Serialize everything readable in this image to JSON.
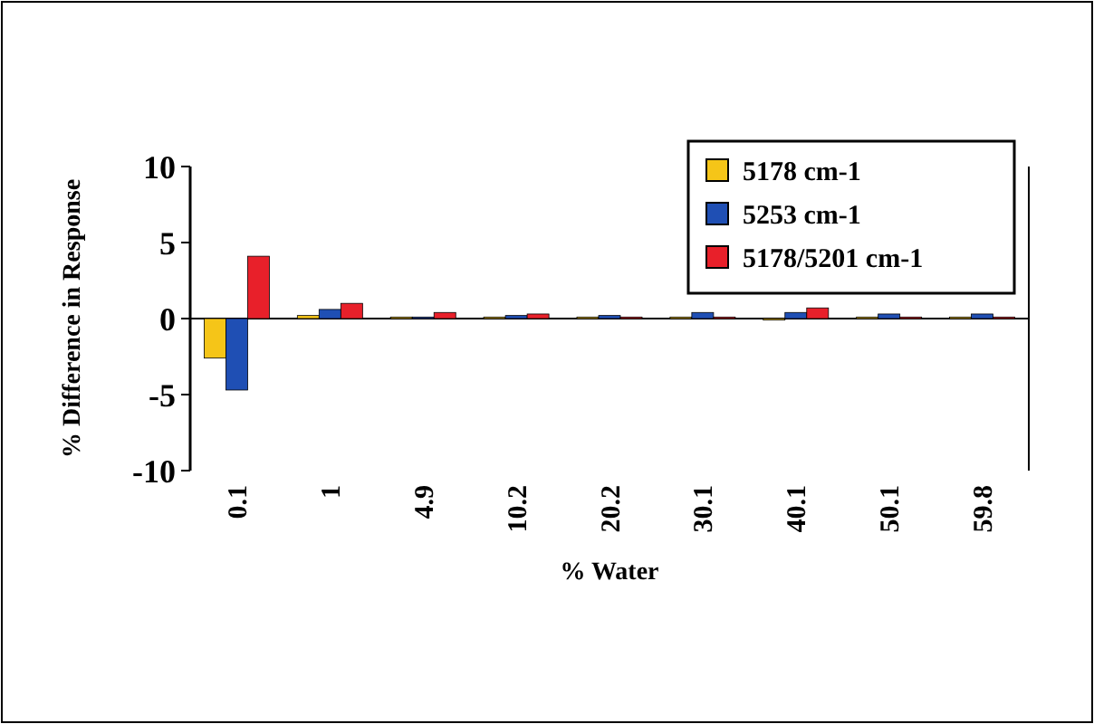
{
  "chart_data": {
    "type": "bar",
    "xlabel": "% Water",
    "ylabel": "% Difference in Response",
    "categories": [
      "0.1",
      "1",
      "4.9",
      "10.2",
      "20.2",
      "30.1",
      "40.1",
      "50.1",
      "59.8"
    ],
    "series": [
      {
        "name": "5178 cm-1",
        "color": "#f5c518",
        "values": [
          -2.6,
          0.2,
          0.1,
          0.1,
          0.1,
          0.1,
          -0.1,
          0.1,
          0.1
        ]
      },
      {
        "name": "5253 cm-1",
        "color": "#1f4fb4",
        "values": [
          -4.7,
          0.6,
          0.1,
          0.2,
          0.2,
          0.4,
          0.4,
          0.3,
          0.3
        ]
      },
      {
        "name": "5178/5201 cm-1",
        "color": "#e8202a",
        "values": [
          4.1,
          1.0,
          0.4,
          0.3,
          0.1,
          0.1,
          0.7,
          0.1,
          0.1
        ]
      }
    ],
    "ylim": [
      -10,
      10
    ],
    "yticks": [
      -10,
      -5,
      0,
      5,
      10
    ],
    "legend": "top right"
  }
}
